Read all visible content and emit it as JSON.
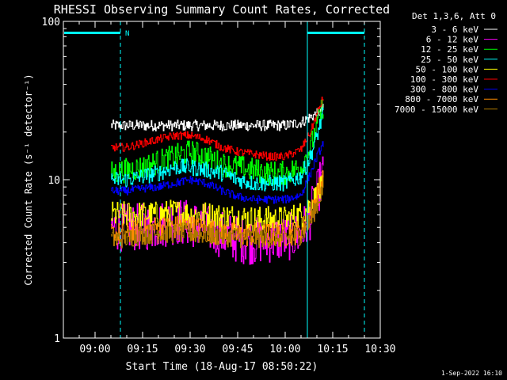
{
  "chart_data": {
    "type": "line",
    "title": "RHESSI Observing Summary Count Rates, Corrected",
    "xlabel": "Start Time (18-Aug-17 08:50:22)",
    "ylabel": "Corrected Count Rate (s⁻¹ detector⁻¹)",
    "yscale": "log",
    "ylim": [
      1,
      100
    ],
    "xlim": [
      "08:50",
      "10:30"
    ],
    "x_ticks": [
      "09:00",
      "09:15",
      "09:30",
      "09:45",
      "10:00",
      "10:15",
      "10:30"
    ],
    "y_ticks": [
      "1",
      "10",
      "100"
    ],
    "grid": false,
    "legend_placement": "top-right",
    "legend_title": "Det 1,3,6, Att 0",
    "timestamp": "1-Sep-2022 16:10",
    "annotations": {
      "night_marker": "N",
      "night_intervals": [
        [
          "08:50",
          "09:08"
        ],
        [
          "10:07",
          "10:25"
        ]
      ],
      "vertical_lines": [
        {
          "time": "09:08",
          "style": "dashed"
        },
        {
          "time": "10:07",
          "style": "solid"
        },
        {
          "time": "10:25",
          "style": "dashed"
        }
      ]
    },
    "series_times": [
      "09:05",
      "09:10",
      "09:15",
      "09:20",
      "09:25",
      "09:30",
      "09:35",
      "09:40",
      "09:45",
      "09:50",
      "09:55",
      "10:00",
      "10:05",
      "10:08",
      "10:10",
      "10:12"
    ],
    "series": [
      {
        "name": "3 - 6 keV",
        "color": "#ffffff",
        "values": [
          22,
          22,
          22,
          22,
          22,
          22,
          22,
          22,
          22,
          22,
          22,
          22,
          23,
          25,
          26,
          28
        ],
        "noise": 0.08
      },
      {
        "name": "6 - 12 keV",
        "color": "#ff00ff",
        "values": [
          5,
          5,
          5,
          5.2,
          5.5,
          5.3,
          5,
          4.5,
          4.2,
          4.1,
          4.2,
          4.3,
          4.5,
          6,
          8,
          11
        ],
        "noise": 0.35
      },
      {
        "name": "12 - 25 keV",
        "color": "#00ff00",
        "values": [
          11,
          11.5,
          12,
          13,
          14,
          15,
          14,
          12.5,
          12,
          11.5,
          11,
          11,
          12,
          16,
          22,
          30
        ],
        "noise": 0.18
      },
      {
        "name": "25 - 50 keV",
        "color": "#00ffff",
        "values": [
          10,
          10,
          10.5,
          11,
          12,
          12,
          11.5,
          11,
          10,
          9.5,
          9.5,
          9.5,
          10.5,
          14,
          19,
          26
        ],
        "noise": 0.12
      },
      {
        "name": "50 - 100 keV",
        "color": "#ffff00",
        "values": [
          6,
          6,
          6,
          6,
          6.2,
          6,
          6,
          5.8,
          5.8,
          5.6,
          5.6,
          5.6,
          6,
          7,
          8,
          9
        ],
        "noise": 0.2
      },
      {
        "name": "100 - 300 keV",
        "color": "#ff0000",
        "values": [
          16,
          16,
          17,
          18,
          19,
          19,
          18,
          16,
          15,
          14.5,
          14,
          14,
          15.5,
          20,
          26,
          33
        ],
        "noise": 0.06
      },
      {
        "name": "300 - 800 keV",
        "color": "#0000ff",
        "values": [
          8.5,
          8.5,
          8.8,
          9,
          9.5,
          10,
          9.5,
          8.5,
          7.8,
          7.5,
          7.5,
          7.5,
          8,
          11,
          14,
          17
        ],
        "noise": 0.06
      },
      {
        "name": "800 - 7000 keV",
        "color": "#ff8c00",
        "values": [
          4.5,
          4.5,
          4.8,
          5,
          5,
          5,
          4.8,
          4.6,
          4.5,
          4.5,
          4.5,
          4.5,
          4.7,
          6,
          8,
          10
        ],
        "noise": 0.18
      },
      {
        "name": "7000 - 15000 keV",
        "color": "#aa7700",
        "values": [
          4.2,
          4.3,
          4.5,
          4.6,
          4.6,
          4.6,
          4.5,
          4.4,
          4.3,
          4.3,
          4.3,
          4.3,
          4.5,
          5.5,
          7,
          9
        ],
        "noise": 0.15
      }
    ]
  }
}
